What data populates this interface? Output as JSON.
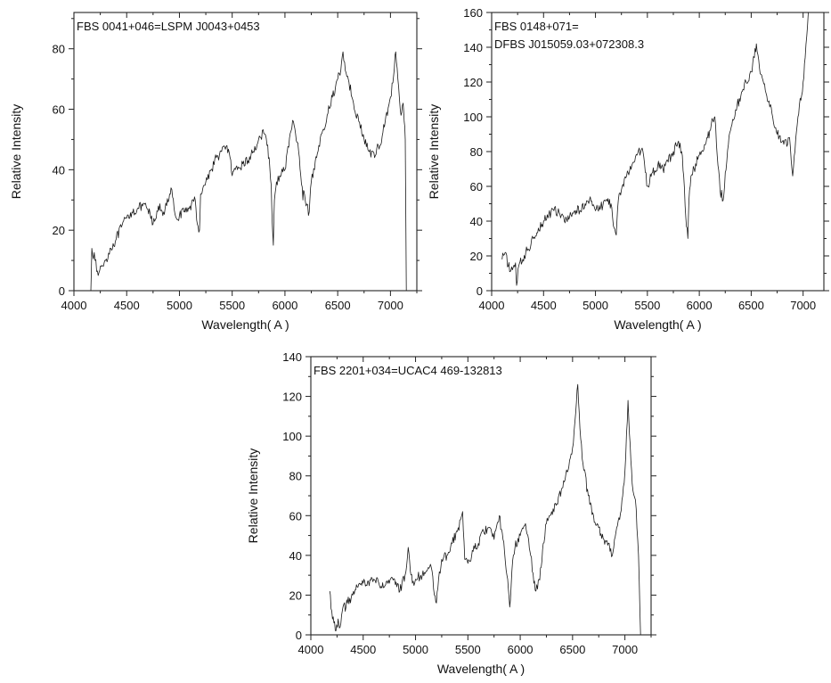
{
  "chart_data": [
    {
      "type": "line",
      "title_lines": [
        "FBS 0041+046=LSPM J0043+0453"
      ],
      "xlabel": "Wavelength( A )",
      "ylabel": "Relative Intensity",
      "xlim": [
        4000,
        7250
      ],
      "ylim": [
        0,
        92
      ],
      "xticks": [
        4000,
        4500,
        5000,
        5500,
        6000,
        6500,
        7000
      ],
      "yticks": [
        0,
        20,
        40,
        60,
        80
      ],
      "series": [
        {
          "x": [
            4160,
            4170,
            4200,
            4230,
            4260,
            4300,
            4350,
            4400,
            4450,
            4500,
            4550,
            4600,
            4650,
            4700,
            4750,
            4780,
            4800,
            4850,
            4900,
            4920,
            4950,
            4970,
            5000,
            5050,
            5100,
            5150,
            5170,
            5190,
            5200,
            5250,
            5300,
            5350,
            5400,
            5450,
            5480,
            5500,
            5550,
            5600,
            5650,
            5700,
            5750,
            5800,
            5830,
            5850,
            5870,
            5880,
            5890,
            5900,
            5920,
            5950,
            6000,
            6050,
            6080,
            6100,
            6130,
            6150,
            6170,
            6180,
            6200,
            6230,
            6250,
            6280,
            6300,
            6350,
            6400,
            6450,
            6500,
            6530,
            6550,
            6580,
            6600,
            6650,
            6700,
            6750,
            6800,
            6850,
            6870,
            6900,
            6950,
            7000,
            7030,
            7050,
            7070,
            7100,
            7120,
            7130,
            7140,
            7150
          ],
          "y": [
            0,
            14,
            10,
            5,
            8,
            10,
            14,
            17,
            21,
            24,
            26,
            27,
            28,
            27,
            22,
            24,
            28,
            26,
            30,
            34,
            27,
            24,
            25,
            26,
            28,
            30,
            22,
            20,
            32,
            36,
            40,
            44,
            46,
            48,
            44,
            38,
            40,
            42,
            43,
            46,
            50,
            52,
            48,
            44,
            35,
            22,
            15,
            30,
            36,
            38,
            40,
            52,
            56,
            52,
            46,
            38,
            30,
            33,
            28,
            26,
            36,
            40,
            44,
            52,
            58,
            64,
            70,
            73,
            79,
            72,
            70,
            62,
            56,
            50,
            46,
            44,
            47,
            48,
            56,
            64,
            71,
            79,
            70,
            58,
            62,
            56,
            50,
            0
          ]
        }
      ]
    },
    {
      "type": "line",
      "title_lines": [
        "FBS 0148+071=",
        "DFBS J015059.03+072308.3"
      ],
      "xlabel": "Wavelength( A )",
      "ylabel": "Relative Intensity",
      "xlim": [
        4000,
        7200
      ],
      "ylim": [
        0,
        160
      ],
      "xticks": [
        4000,
        4500,
        5000,
        5500,
        6000,
        6500,
        7000
      ],
      "yticks": [
        0,
        20,
        40,
        60,
        80,
        100,
        120,
        140,
        160
      ],
      "series": [
        {
          "x": [
            4100,
            4130,
            4160,
            4200,
            4230,
            4240,
            4260,
            4300,
            4350,
            4400,
            4450,
            4500,
            4550,
            4600,
            4650,
            4700,
            4750,
            4800,
            4850,
            4900,
            4950,
            5000,
            5050,
            5100,
            5150,
            5180,
            5200,
            5220,
            5250,
            5300,
            5350,
            5400,
            5450,
            5480,
            5500,
            5550,
            5600,
            5650,
            5700,
            5750,
            5800,
            5830,
            5850,
            5870,
            5890,
            5900,
            5920,
            5950,
            6000,
            6050,
            6080,
            6100,
            6130,
            6150,
            6180,
            6200,
            6230,
            6250,
            6280,
            6300,
            6350,
            6400,
            6450,
            6500,
            6530,
            6550,
            6580,
            6600,
            6650,
            6700,
            6750,
            6800,
            6850,
            6870,
            6900,
            6950,
            7000,
            7020,
            7050
          ],
          "y": [
            18,
            22,
            14,
            12,
            16,
            3,
            14,
            18,
            24,
            30,
            36,
            40,
            44,
            46,
            45,
            40,
            42,
            46,
            46,
            50,
            54,
            46,
            48,
            52,
            50,
            36,
            32,
            52,
            58,
            66,
            72,
            78,
            82,
            68,
            60,
            68,
            72,
            70,
            74,
            80,
            86,
            80,
            66,
            42,
            30,
            52,
            66,
            70,
            78,
            84,
            88,
            92,
            98,
            100,
            72,
            58,
            52,
            68,
            84,
            92,
            104,
            112,
            120,
            126,
            134,
            142,
            128,
            124,
            112,
            102,
            90,
            86,
            84,
            88,
            66,
            100,
            120,
            134,
            160
          ]
        }
      ]
    },
    {
      "type": "line",
      "title_lines": [
        "FBS 2201+034=UCAC4 469-132813"
      ],
      "xlabel": "Wavelength( A )",
      "ylabel": "Relative Intensity",
      "xlim": [
        4000,
        7250
      ],
      "ylim": [
        0,
        140
      ],
      "xticks": [
        4000,
        4500,
        5000,
        5500,
        6000,
        6500,
        7000
      ],
      "yticks": [
        0,
        20,
        40,
        60,
        80,
        100,
        120,
        140
      ],
      "series": [
        {
          "x": [
            4180,
            4200,
            4220,
            4240,
            4260,
            4280,
            4300,
            4350,
            4400,
            4450,
            4500,
            4550,
            4600,
            4650,
            4700,
            4750,
            4800,
            4850,
            4900,
            4930,
            4950,
            4970,
            5000,
            5050,
            5100,
            5150,
            5180,
            5200,
            5220,
            5250,
            5300,
            5350,
            5400,
            5430,
            5450,
            5470,
            5500,
            5550,
            5600,
            5650,
            5700,
            5750,
            5780,
            5800,
            5850,
            5880,
            5900,
            5920,
            5950,
            6000,
            6050,
            6080,
            6100,
            6130,
            6150,
            6180,
            6200,
            6220,
            6250,
            6300,
            6350,
            6400,
            6450,
            6500,
            6530,
            6550,
            6570,
            6600,
            6650,
            6700,
            6750,
            6800,
            6850,
            6880,
            6900,
            6950,
            7000,
            7030,
            7050,
            7070,
            7100,
            7130,
            7150
          ],
          "y": [
            22,
            12,
            6,
            2,
            8,
            4,
            12,
            16,
            20,
            24,
            26,
            27,
            28,
            26,
            24,
            26,
            28,
            22,
            30,
            44,
            32,
            26,
            28,
            30,
            32,
            34,
            20,
            16,
            28,
            38,
            40,
            46,
            52,
            58,
            62,
            38,
            36,
            42,
            46,
            52,
            54,
            48,
            56,
            60,
            42,
            28,
            14,
            32,
            44,
            50,
            56,
            48,
            40,
            26,
            22,
            28,
            34,
            46,
            56,
            62,
            66,
            74,
            82,
            94,
            112,
            126,
            104,
            86,
            70,
            60,
            54,
            48,
            46,
            40,
            48,
            58,
            82,
            118,
            96,
            76,
            68,
            40,
            0
          ]
        }
      ]
    }
  ]
}
